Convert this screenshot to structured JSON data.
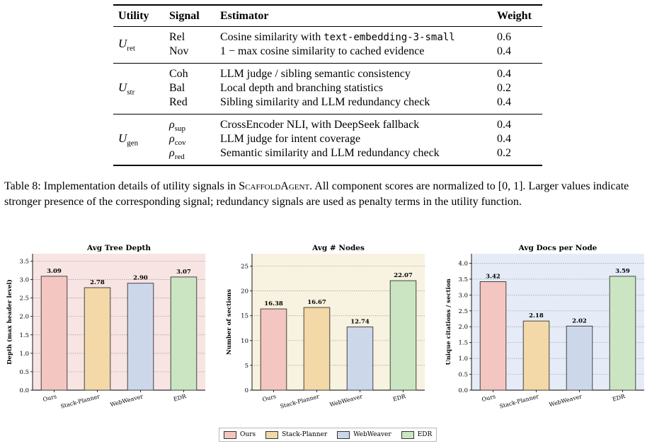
{
  "table": {
    "headers": [
      "Utility",
      "Signal",
      "Estimator",
      "Weight"
    ],
    "groups": [
      {
        "utility": {
          "base": "U",
          "sub": "ret"
        },
        "rows": [
          {
            "signal": "Rel",
            "estimator_pre": "Cosine similarity with ",
            "estimator_code": "text-embedding-3-small",
            "weight": "0.6"
          },
          {
            "signal": "Nov",
            "estimator_pre": "1 − max cosine similarity to cached evidence",
            "estimator_code": "",
            "weight": "0.4"
          }
        ]
      },
      {
        "utility": {
          "base": "U",
          "sub": "str"
        },
        "rows": [
          {
            "signal": "Coh",
            "estimator_pre": "LLM judge / sibling semantic consistency",
            "estimator_code": "",
            "weight": "0.4"
          },
          {
            "signal": "Bal",
            "estimator_pre": "Local depth and branching statistics",
            "estimator_code": "",
            "weight": "0.2"
          },
          {
            "signal": "Red",
            "estimator_pre": "Sibling similarity and LLM redundancy check",
            "estimator_code": "",
            "weight": "0.4"
          }
        ]
      },
      {
        "utility": {
          "base": "U",
          "sub": "gen"
        },
        "rows": [
          {
            "signal_base": "ρ",
            "signal_sub": "sup",
            "estimator_pre": "CrossEncoder NLI, with DeepSeek fallback",
            "estimator_code": "",
            "weight": "0.4"
          },
          {
            "signal_base": "ρ",
            "signal_sub": "cov",
            "estimator_pre": "LLM judge for intent coverage",
            "estimator_code": "",
            "weight": "0.4"
          },
          {
            "signal_base": "ρ",
            "signal_sub": "red",
            "estimator_pre": "Semantic similarity and LLM redundancy check",
            "estimator_code": "",
            "weight": "0.2"
          }
        ]
      }
    ]
  },
  "caption": {
    "label": "Table 8: Implementation details of utility signals in ",
    "system": "ScaffoldAgent",
    "rest": ". All component scores are normalized to [0, 1]. Larger values indicate stronger presence of the corresponding signal; redundancy signals are used as penalty terms in the utility function."
  },
  "chart_data": [
    {
      "type": "bar",
      "title": "Avg Tree Depth",
      "ylabel": "Depth (max header level)",
      "xlabel": "",
      "categories": [
        "Ours",
        "Stack-Planner",
        "WebWeaver",
        "EDR"
      ],
      "values": [
        3.09,
        2.78,
        2.9,
        3.07
      ],
      "labels": [
        "3.09",
        "2.78",
        "2.90",
        "3.07"
      ],
      "ylim": [
        0,
        3.7
      ],
      "yticks": [
        "0.0",
        "0.5",
        "1.0",
        "1.5",
        "2.0",
        "2.5",
        "3.0",
        "3.5"
      ],
      "ytick_values": [
        0,
        0.5,
        1.0,
        1.5,
        2.0,
        2.5,
        3.0,
        3.5
      ],
      "background": "#f7e4e3",
      "grid": true
    },
    {
      "type": "bar",
      "title": "Avg # Nodes",
      "ylabel": "Number of sections",
      "xlabel": "",
      "categories": [
        "Ours",
        "Stack-Planner",
        "WebWeaver",
        "EDR"
      ],
      "values": [
        16.38,
        16.67,
        12.74,
        22.07
      ],
      "labels": [
        "16.38",
        "16.67",
        "12.74",
        "22.07"
      ],
      "ylim": [
        0,
        27.5
      ],
      "yticks": [
        "0",
        "5",
        "10",
        "15",
        "20",
        "25"
      ],
      "ytick_values": [
        0,
        5,
        10,
        15,
        20,
        25
      ],
      "background": "#f8f2e0",
      "grid": true
    },
    {
      "type": "bar",
      "title": "Avg Docs per Node",
      "ylabel": "Unique citations / section",
      "xlabel": "",
      "categories": [
        "Ours",
        "Stack-Planner",
        "WebWeaver",
        "EDR"
      ],
      "values": [
        3.42,
        2.18,
        2.02,
        3.59
      ],
      "labels": [
        "3.42",
        "2.18",
        "2.02",
        "3.59"
      ],
      "ylim": [
        0,
        4.3
      ],
      "yticks": [
        "0.0",
        "0.5",
        "1.0",
        "1.5",
        "2.0",
        "2.5",
        "3.0",
        "3.5",
        "4.0"
      ],
      "ytick_values": [
        0,
        0.5,
        1.0,
        1.5,
        2.0,
        2.5,
        3.0,
        3.5,
        4.0
      ],
      "background": "#e6ecf7",
      "grid": true
    }
  ],
  "legend": [
    {
      "label": "Ours",
      "color": "#f4c6c2"
    },
    {
      "label": "Stack-Planner",
      "color": "#f3d8a8"
    },
    {
      "label": "WebWeaver",
      "color": "#ccd8ea"
    },
    {
      "label": "EDR",
      "color": "#cbe5c2"
    }
  ],
  "bar_colors": [
    "#f4c6c2",
    "#f3d8a8",
    "#ccd8ea",
    "#cbe5c2"
  ]
}
